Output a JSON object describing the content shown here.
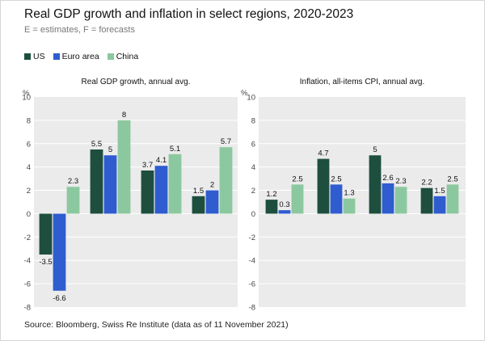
{
  "title": "Real GDP growth and inflation in select regions, 2020-2023",
  "subtitle": "E = estimates, F = forecasts",
  "source": "Source: Bloomberg, Swiss Re Institute (data as of 11 November 2021)",
  "colors": {
    "US": "#1e4f3e",
    "Euro area": "#2f5ccf",
    "China": "#8cc89f",
    "panel_bg": "#ebebeb",
    "grid": "#ffffff"
  },
  "chart_data": [
    {
      "type": "bar",
      "title": "Real GDP growth, annual avg.",
      "ylabel": "%",
      "ylim": [
        -8,
        10
      ],
      "yticks": [
        -8,
        -6,
        -4,
        -2,
        0,
        2,
        4,
        6,
        8,
        10
      ],
      "categories": [
        "",
        "",
        "",
        ""
      ],
      "series": [
        {
          "name": "US",
          "values": [
            -3.5,
            5.5,
            3.7,
            1.5
          ]
        },
        {
          "name": "Euro area",
          "values": [
            -6.6,
            5,
            4.1,
            2
          ]
        },
        {
          "name": "China",
          "values": [
            2.3,
            8,
            5.1,
            5.7
          ]
        }
      ]
    },
    {
      "type": "bar",
      "title": "Inflation, all-items CPI, annual avg.",
      "ylabel": "%",
      "ylim": [
        -8,
        10
      ],
      "yticks": [
        -8,
        -6,
        -4,
        -2,
        0,
        2,
        4,
        6,
        8,
        10
      ],
      "categories": [
        "",
        "",
        "",
        ""
      ],
      "series": [
        {
          "name": "US",
          "values": [
            1.2,
            4.7,
            5,
            2.2
          ]
        },
        {
          "name": "Euro area",
          "values": [
            0.3,
            2.5,
            2.6,
            1.5
          ]
        },
        {
          "name": "China",
          "values": [
            2.5,
            1.3,
            2.3,
            2.5
          ]
        }
      ]
    }
  ]
}
